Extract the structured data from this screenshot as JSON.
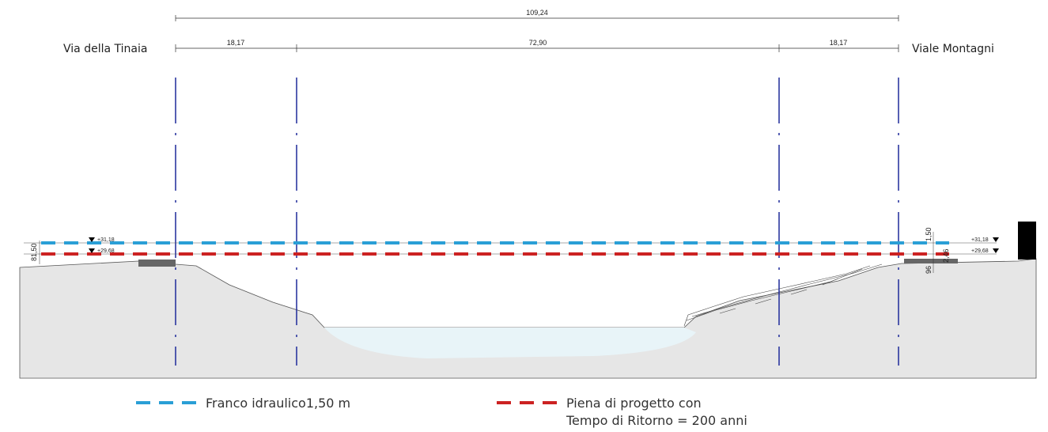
{
  "streets": {
    "left": "Via della Tinaia",
    "right": "Viale Montagni"
  },
  "dimensions": {
    "total": "109,24",
    "left_bank": "18,17",
    "channel": "72,90",
    "right_bank": "18,17"
  },
  "elevations": {
    "freeboard_left": "+31,18",
    "flood_left": "+29,68",
    "freeboard_right": "+31,18",
    "flood_right": "+29,68",
    "left_vertical": "81,50",
    "right_freeboard_gap": "1,50",
    "right_flood_depth": "2,46",
    "right_small": "96"
  },
  "legend": {
    "freeboard": "Franco idraulico1,50 m",
    "flood_line1": "Piena di progetto con",
    "flood_line2": "Tempo di Ritorno = 200 anni"
  },
  "colors": {
    "freeboard": "#2a9fd6",
    "flood": "#cc2222",
    "axis": "#1f2a9a",
    "ground": "#e6e6e6",
    "water": "#e8f4f8"
  }
}
